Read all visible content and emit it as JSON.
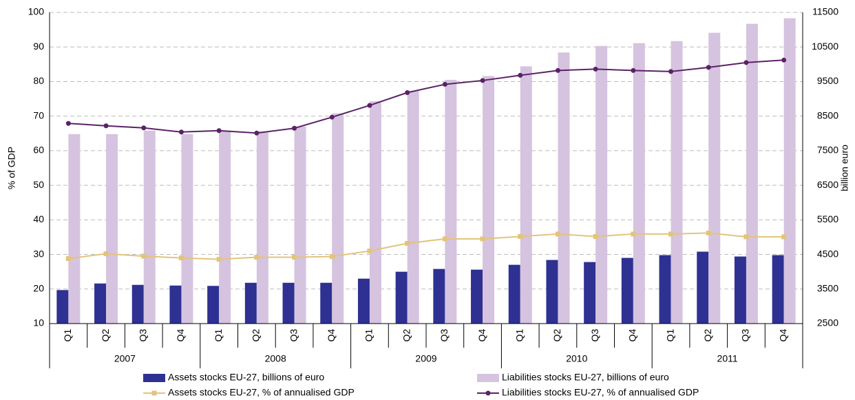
{
  "chart_data": {
    "type": "bar",
    "y_label": "% of GDP",
    "y2_label": "billion euro",
    "categories": [
      "Q1",
      "Q2",
      "Q3",
      "Q4",
      "Q1",
      "Q2",
      "Q3",
      "Q4",
      "Q1",
      "Q2",
      "Q3",
      "Q4",
      "Q1",
      "Q2",
      "Q3",
      "Q4",
      "Q1",
      "Q2",
      "Q3",
      "Q4"
    ],
    "year_groups": [
      "2007",
      "2008",
      "2009",
      "2010",
      "2011"
    ],
    "ylim": [
      10,
      100
    ],
    "yticks": [
      10,
      20,
      30,
      40,
      50,
      60,
      70,
      80,
      90,
      100
    ],
    "y2lim": [
      2500,
      11500
    ],
    "y2ticks": [
      2500,
      3500,
      4500,
      5500,
      6500,
      7500,
      8500,
      9500,
      10500,
      11500
    ],
    "grid": true,
    "series": [
      {
        "name": "Assets stocks EU-27, billions of euro",
        "type": "bar",
        "axis": "y2",
        "color": "#2e3192",
        "values": [
          3470,
          3660,
          3620,
          3600,
          3590,
          3680,
          3680,
          3680,
          3800,
          4000,
          4080,
          4060,
          4200,
          4340,
          4280,
          4400,
          4480,
          4580,
          4440,
          4480
        ]
      },
      {
        "name": "Liabilities stocks EU-27, billions of euro",
        "type": "bar",
        "axis": "y2",
        "color": "#d5c3df",
        "values": [
          7980,
          7980,
          8080,
          7980,
          8080,
          8060,
          8200,
          8580,
          8930,
          9230,
          9550,
          9660,
          9940,
          10340,
          10530,
          10610,
          10670,
          10910,
          11170,
          11330
        ]
      },
      {
        "name": "Assets stocks EU-27, % of annualised GDP",
        "type": "line",
        "color": "#e3c47a",
        "marker": "square",
        "values": [
          28.8,
          30.2,
          29.5,
          29.0,
          28.6,
          29.2,
          29.2,
          29.4,
          31.0,
          33.2,
          34.5,
          34.5,
          35.2,
          35.9,
          35.2,
          35.9,
          35.9,
          36.2,
          35.1,
          35.1
        ]
      },
      {
        "name": "Liabilities stocks EU-27, % of annualised GDP",
        "type": "line",
        "color": "#5b2266",
        "marker": "circle",
        "values": [
          67.9,
          67.2,
          66.6,
          65.4,
          65.8,
          65.1,
          66.5,
          69.7,
          73.1,
          76.8,
          79.2,
          80.3,
          81.8,
          83.2,
          83.6,
          83.2,
          82.9,
          84.1,
          85.5,
          86.2
        ]
      }
    ]
  }
}
